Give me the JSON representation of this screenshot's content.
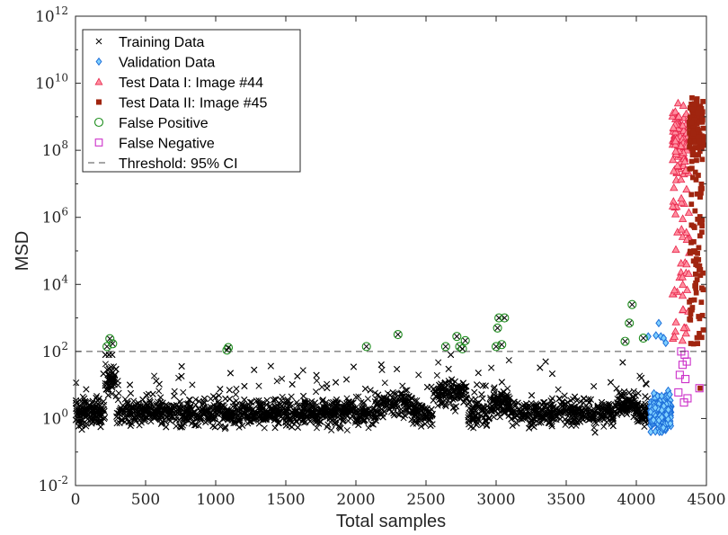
{
  "chart_data": {
    "type": "scatter",
    "xlabel": "Total samples",
    "ylabel": "MSD",
    "xlim": [
      0,
      4500
    ],
    "ylim_exponents": [
      -2,
      12
    ],
    "yscale": "log",
    "grid": false,
    "legend_position": "top-left",
    "x_ticks": [
      0,
      500,
      1000,
      1500,
      2000,
      2500,
      3000,
      3500,
      4000,
      4500
    ],
    "y_ticks": [
      {
        "base": "10",
        "exp": "-2"
      },
      {
        "base": "10",
        "exp": "0"
      },
      {
        "base": "10",
        "exp": "2"
      },
      {
        "base": "10",
        "exp": "4"
      },
      {
        "base": "10",
        "exp": "6"
      },
      {
        "base": "10",
        "exp": "8"
      },
      {
        "base": "10",
        "exp": "10"
      },
      {
        "base": "10",
        "exp": "12"
      }
    ],
    "threshold": {
      "label": "Threshold: 95% CI",
      "value": 100,
      "color": "#4d4d4d"
    },
    "series": [
      {
        "name": "Training Data",
        "marker": "x",
        "color": "#000000",
        "x_range": [
          1,
          4100
        ],
        "typical_range": [
          0.5,
          20
        ]
      },
      {
        "name": "Validation Data",
        "marker": "diamond",
        "color": "#1e90ff",
        "x_range": [
          4100,
          4250
        ],
        "typical_range": [
          0.5,
          60
        ]
      },
      {
        "name": "Test Data I: Image #44",
        "marker": "triangle",
        "color": "#ff4d6d",
        "x_range": [
          4250,
          4380
        ],
        "typical_range": [
          100,
          10000000000
        ]
      },
      {
        "name": "Test Data II: Image #45",
        "marker": "square-filled",
        "color": "#a0250f",
        "x_range": [
          4375,
          4480
        ],
        "typical_range": [
          100,
          20000000000
        ]
      },
      {
        "name": "False Positive",
        "marker": "circle-open",
        "color": "#1f8f1f",
        "points": [
          [
            225,
            140
          ],
          [
            245,
            240
          ],
          [
            265,
            170
          ],
          [
            1080,
            110
          ],
          [
            1090,
            130
          ],
          [
            2075,
            140
          ],
          [
            2300,
            320
          ],
          [
            2640,
            140
          ],
          [
            2720,
            280
          ],
          [
            2740,
            140
          ],
          [
            2760,
            120
          ],
          [
            2780,
            210
          ],
          [
            3000,
            140
          ],
          [
            3010,
            500
          ],
          [
            3020,
            1000
          ],
          [
            3040,
            160
          ],
          [
            3060,
            1000
          ],
          [
            3920,
            200
          ],
          [
            3950,
            700
          ],
          [
            3970,
            2500
          ],
          [
            4050,
            250
          ]
        ]
      },
      {
        "name": "False Negative",
        "marker": "square-open",
        "color": "#cc2fc9",
        "points": [
          [
            4300,
            6
          ],
          [
            4310,
            20
          ],
          [
            4320,
            100
          ],
          [
            4330,
            40
          ],
          [
            4340,
            3
          ],
          [
            4345,
            80
          ],
          [
            4350,
            15
          ],
          [
            4360,
            50
          ],
          [
            4365,
            4
          ],
          [
            4450,
            8
          ]
        ]
      }
    ]
  }
}
